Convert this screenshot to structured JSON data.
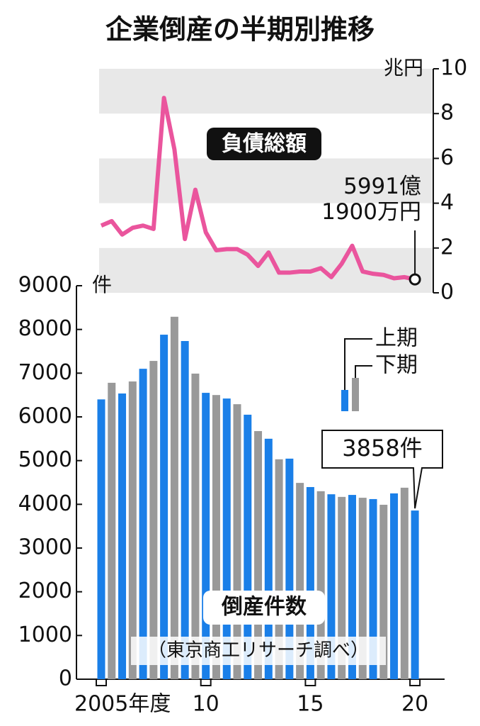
{
  "title": "企業倒産の半期別推移",
  "chart_data": [
    {
      "type": "line",
      "title": "負債総額",
      "y_unit": "兆円",
      "color": "#ea559d",
      "values": [
        3.0,
        3.2,
        2.6,
        2.9,
        3.0,
        2.85,
        8.7,
        6.4,
        2.4,
        4.6,
        2.7,
        1.9,
        1.95,
        1.95,
        1.7,
        1.2,
        1.8,
        0.9,
        0.9,
        0.95,
        0.95,
        1.1,
        0.7,
        1.3,
        2.1,
        0.95,
        0.85,
        0.8,
        0.65,
        0.7,
        0.59919
      ],
      "value_labels": [
        null,
        null,
        null,
        null,
        null,
        null,
        null,
        null,
        null,
        null,
        null,
        null,
        null,
        null,
        null,
        null,
        null,
        null,
        null,
        null,
        null,
        null,
        null,
        null,
        null,
        null,
        null,
        null,
        null,
        null,
        "5991億\n1900万円"
      ],
      "ylim": [
        0,
        10
      ],
      "yticks": [
        0,
        2,
        4,
        6,
        8,
        10
      ],
      "grid": "bands"
    },
    {
      "type": "bar",
      "title": "倒産件数",
      "source": "（東京商工リサーチ調べ）",
      "y_unit": "件",
      "categories": [
        "2005年度",
        null,
        null,
        null,
        null,
        null,
        null,
        null,
        null,
        null,
        "10",
        null,
        null,
        null,
        null,
        null,
        null,
        null,
        null,
        null,
        "15",
        null,
        null,
        null,
        null,
        null,
        null,
        null,
        null,
        null,
        "20"
      ],
      "series": [
        {
          "name": "上期",
          "color": "#1a7fe8",
          "values": [
            6400,
            null,
            6535,
            null,
            7100,
            null,
            7880,
            null,
            7735,
            null,
            6550,
            null,
            6420,
            null,
            6050,
            null,
            5500,
            null,
            5045,
            null,
            4395,
            null,
            4230,
            null,
            4215,
            null,
            4120,
            null,
            4250,
            null,
            3858
          ],
          "value_labels": [
            null,
            null,
            null,
            null,
            null,
            null,
            null,
            null,
            null,
            null,
            null,
            null,
            null,
            null,
            null,
            null,
            null,
            null,
            null,
            null,
            null,
            null,
            null,
            null,
            null,
            null,
            null,
            null,
            null,
            null,
            "3858件"
          ]
        },
        {
          "name": "下期",
          "color": "#999999",
          "values": [
            null,
            6780,
            null,
            6810,
            null,
            7280,
            null,
            8290,
            null,
            6990,
            null,
            6500,
            null,
            6290,
            null,
            5675,
            null,
            5030,
            null,
            4490,
            null,
            4300,
            null,
            4170,
            null,
            4150,
            null,
            3990,
            null,
            4380,
            null
          ]
        }
      ],
      "ylim": [
        0,
        9000
      ],
      "yticks": [
        0,
        1000,
        2000,
        3000,
        4000,
        5000,
        6000,
        7000,
        8000,
        9000
      ]
    }
  ]
}
